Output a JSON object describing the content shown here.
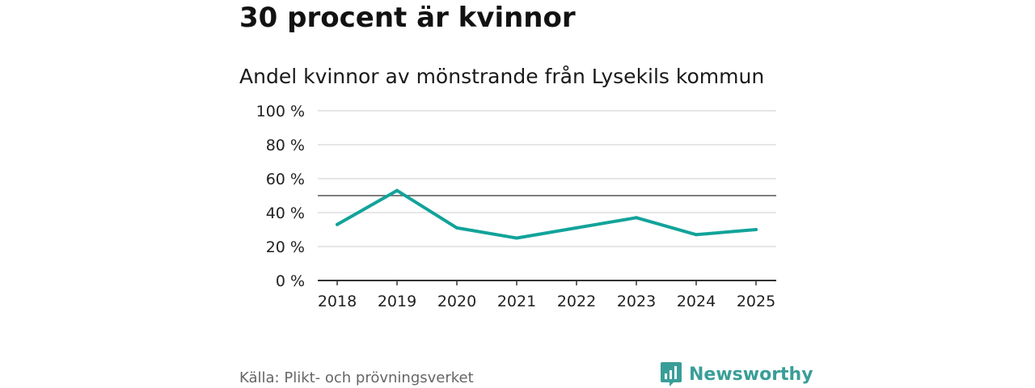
{
  "headline": "30 procent är kvinnor",
  "subtitle": "Andel kvinnor av mönstrande från Lysekils kommun",
  "source": "Källa: Plikt- och prövningsverket",
  "brand": {
    "name": "Newsworthy",
    "icon": "newsworthy-logo-icon",
    "color": "#3a9e98"
  },
  "colors": {
    "line": "#12a39a",
    "grid": "#dddddd",
    "axis": "#333333",
    "reference": "#555555"
  },
  "chart_data": {
    "type": "line",
    "title": "Andel kvinnor av mönstrande från Lysekils kommun",
    "xlabel": "",
    "ylabel": "",
    "x": [
      "2018",
      "2019",
      "2020",
      "2021",
      "2022",
      "2023",
      "2024",
      "2025"
    ],
    "series": [
      {
        "name": "Andel kvinnor",
        "values": [
          33,
          53,
          31,
          25,
          31,
          37,
          27,
          30
        ]
      }
    ],
    "reference_line": 50,
    "ylim": [
      0,
      100
    ],
    "yticks": [
      0,
      20,
      40,
      60,
      80,
      100
    ],
    "ytick_labels": [
      "0 %",
      "20 %",
      "40 %",
      "60 %",
      "80 %",
      "100 %"
    ],
    "grid": true,
    "legend": "none"
  }
}
